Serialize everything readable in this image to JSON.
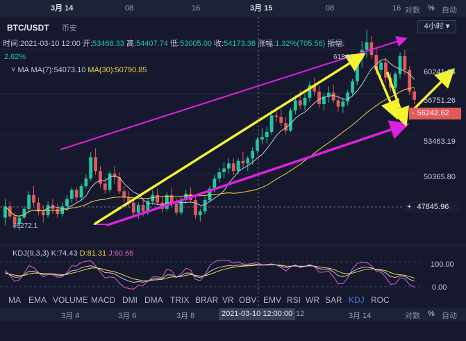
{
  "top_axis": [
    "3月 14",
    "08",
    "16",
    "3月 15",
    "08",
    "16"
  ],
  "top_right": {
    "log": "对数",
    "pct": "%",
    "auto": "自动"
  },
  "header": {
    "pair": "BTC/USDT",
    "exchange": "币安",
    "interval": "4小时",
    "ohlc_line": {
      "time": "时间:2021-03-10 12:00",
      "open_label": "开:",
      "open": "53468.33",
      "high_label": "高:",
      "high": "54407.74",
      "low_label": "低:",
      "low": "53005.00",
      "close_label": "收:",
      "close": "54173.38",
      "change_label": "涨幅:",
      "change": "1.32%(705.58)",
      "amp_label": "振幅:",
      "amp": "2.62%"
    },
    "ma_line": {
      "name": "MA",
      "ma7": "MA(7):54073.10",
      "ma30": "MA(30):50790.85"
    }
  },
  "price_labels": [
    "60241.14",
    "56751.26",
    "53463.19",
    "50365.80",
    "47845.96"
  ],
  "current_price": "56242.62",
  "high_marker": "61844",
  "low_marker": "46272.1",
  "kdj": {
    "name": "KDJ(9,3,3)",
    "k": "K:74.43",
    "d": "D:81.31",
    "j": "J:60.66",
    "levels": [
      "100.00",
      "0.00"
    ]
  },
  "indicators": [
    "MA",
    "EMA",
    "VOLUME",
    "MACD",
    "DMI",
    "DMA",
    "TRIX",
    "BRAR",
    "VR",
    "OBV",
    "EMV",
    "RSI",
    "WR",
    "SAR",
    "KDJ",
    "ROC"
  ],
  "active_indicator": "KDJ",
  "bottom_axis": [
    "3月 4",
    "3月 6",
    "3月 8",
    "12",
    "3月 14"
  ],
  "bottom_tip": "2021-03-10 12:00:00",
  "bottom_right": {
    "log": "对数",
    "pct": "%",
    "auto": "自动"
  },
  "colors": {
    "up": "#1fc8a0",
    "down": "#e05a5a",
    "ma7": "#c4c9da",
    "ma30": "#f0d24a",
    "annot_pink": "#e020e0",
    "annot_yellow": "#f4f430",
    "bg": "#16192e"
  },
  "chart_data": {
    "type": "candlestick",
    "ylim": [
      45000,
      62500
    ],
    "candles": [
      [
        46900,
        48400,
        46300,
        47800
      ],
      [
        47800,
        48200,
        46800,
        47000
      ],
      [
        47000,
        47300,
        46000,
        46400
      ],
      [
        46400,
        47100,
        45900,
        46900
      ],
      [
        46900,
        47800,
        46800,
        47600
      ],
      [
        47600,
        49000,
        47300,
        48700
      ],
      [
        48700,
        49400,
        47800,
        48100
      ],
      [
        48100,
        48500,
        47100,
        47400
      ],
      [
        47400,
        47900,
        46500,
        47100
      ],
      [
        47100,
        48200,
        46900,
        47900
      ],
      [
        47900,
        48400,
        47200,
        47600
      ],
      [
        47600,
        48000,
        46900,
        47200
      ],
      [
        47200,
        48100,
        47000,
        47800
      ],
      [
        47800,
        48700,
        47400,
        48400
      ],
      [
        48400,
        49300,
        48100,
        49100
      ],
      [
        49100,
        49300,
        48200,
        48500
      ],
      [
        48500,
        49600,
        48300,
        49400
      ],
      [
        49400,
        50300,
        49200,
        50000
      ],
      [
        50000,
        52100,
        49800,
        51700
      ],
      [
        51700,
        52400,
        50300,
        50600
      ],
      [
        50600,
        51000,
        49300,
        49600
      ],
      [
        49600,
        50100,
        48800,
        49100
      ],
      [
        49100,
        50600,
        48900,
        50400
      ],
      [
        50400,
        51000,
        49600,
        50100
      ],
      [
        50100,
        50500,
        48800,
        49000
      ],
      [
        49000,
        49400,
        48100,
        48500
      ],
      [
        48500,
        49000,
        47700,
        48100
      ],
      [
        48100,
        48400,
        46900,
        47300
      ],
      [
        47300,
        48100,
        46800,
        47900
      ],
      [
        47900,
        48300,
        47000,
        47400
      ],
      [
        47400,
        48400,
        47100,
        48200
      ],
      [
        48200,
        49100,
        47900,
        48700
      ],
      [
        48700,
        49200,
        47900,
        48100
      ],
      [
        48100,
        48600,
        47300,
        47600
      ],
      [
        47600,
        48900,
        47400,
        48700
      ],
      [
        48700,
        49300,
        47800,
        48000
      ],
      [
        48000,
        48400,
        47100,
        47300
      ],
      [
        47300,
        48500,
        47100,
        48300
      ],
      [
        48300,
        49100,
        48000,
        48800
      ],
      [
        48800,
        49300,
        48100,
        48300
      ],
      [
        48300,
        48700,
        46800,
        47100
      ],
      [
        47100,
        47600,
        46600,
        47400
      ],
      [
        47400,
        48600,
        47200,
        48300
      ],
      [
        48300,
        49400,
        48100,
        49200
      ],
      [
        49200,
        50300,
        48900,
        50000
      ],
      [
        50000,
        50800,
        49700,
        50500
      ],
      [
        50500,
        51300,
        50000,
        50800
      ],
      [
        50800,
        51600,
        50400,
        51200
      ],
      [
        51200,
        51600,
        50300,
        50600
      ],
      [
        50600,
        51600,
        50400,
        51400
      ],
      [
        51400,
        52100,
        50900,
        51200
      ],
      [
        51200,
        51800,
        50600,
        51600
      ],
      [
        51600,
        52500,
        51100,
        52200
      ],
      [
        52200,
        53300,
        52000,
        53100
      ],
      [
        53100,
        54000,
        52700,
        53300
      ],
      [
        53300,
        54100,
        52800,
        53700
      ],
      [
        53700,
        55400,
        53500,
        55000
      ],
      [
        55000,
        55700,
        54500,
        54900
      ],
      [
        54900,
        55500,
        54100,
        54400
      ],
      [
        54400,
        54900,
        53500,
        53800
      ],
      [
        53800,
        55600,
        53700,
        55400
      ],
      [
        55400,
        56600,
        55100,
        56200
      ],
      [
        56200,
        57000,
        55500,
        55800
      ],
      [
        55800,
        56700,
        55400,
        56400
      ],
      [
        56400,
        57700,
        56100,
        57400
      ],
      [
        57400,
        58000,
        56600,
        56900
      ],
      [
        56900,
        57400,
        55600,
        55900
      ],
      [
        55900,
        56800,
        55400,
        56500
      ],
      [
        56500,
        57300,
        56000,
        56800
      ],
      [
        56800,
        57400,
        56000,
        56200
      ],
      [
        56200,
        56600,
        55300,
        55700
      ],
      [
        55700,
        56400,
        55200,
        56100
      ],
      [
        56100,
        57000,
        55800,
        56800
      ],
      [
        56800,
        57900,
        56600,
        57700
      ],
      [
        57700,
        59800,
        57400,
        59500
      ],
      [
        59500,
        60900,
        58800,
        60200
      ],
      [
        60200,
        61800,
        59600,
        60800
      ],
      [
        60800,
        61300,
        59500,
        59800
      ],
      [
        59800,
        60400,
        58200,
        58600
      ],
      [
        58600,
        59400,
        58100,
        59200
      ],
      [
        59200,
        59600,
        57600,
        58000
      ],
      [
        58000,
        58400,
        56900,
        57200
      ],
      [
        57200,
        58500,
        56800,
        58300
      ],
      [
        58300,
        60000,
        57900,
        59700
      ],
      [
        59700,
        60200,
        58200,
        58600
      ],
      [
        58600,
        58900,
        56600,
        56900
      ],
      [
        56900,
        57200,
        55900,
        56242.62
      ]
    ],
    "ma7": [],
    "ma30": [],
    "kdj_range": [
      -20,
      120
    ],
    "annotations": {
      "pink_upper_trendline": true,
      "pink_lower_trendline": true,
      "yellow_uptrend_arrow": true,
      "yellow_down_arrows": true,
      "yellow_up_projection": true
    }
  }
}
